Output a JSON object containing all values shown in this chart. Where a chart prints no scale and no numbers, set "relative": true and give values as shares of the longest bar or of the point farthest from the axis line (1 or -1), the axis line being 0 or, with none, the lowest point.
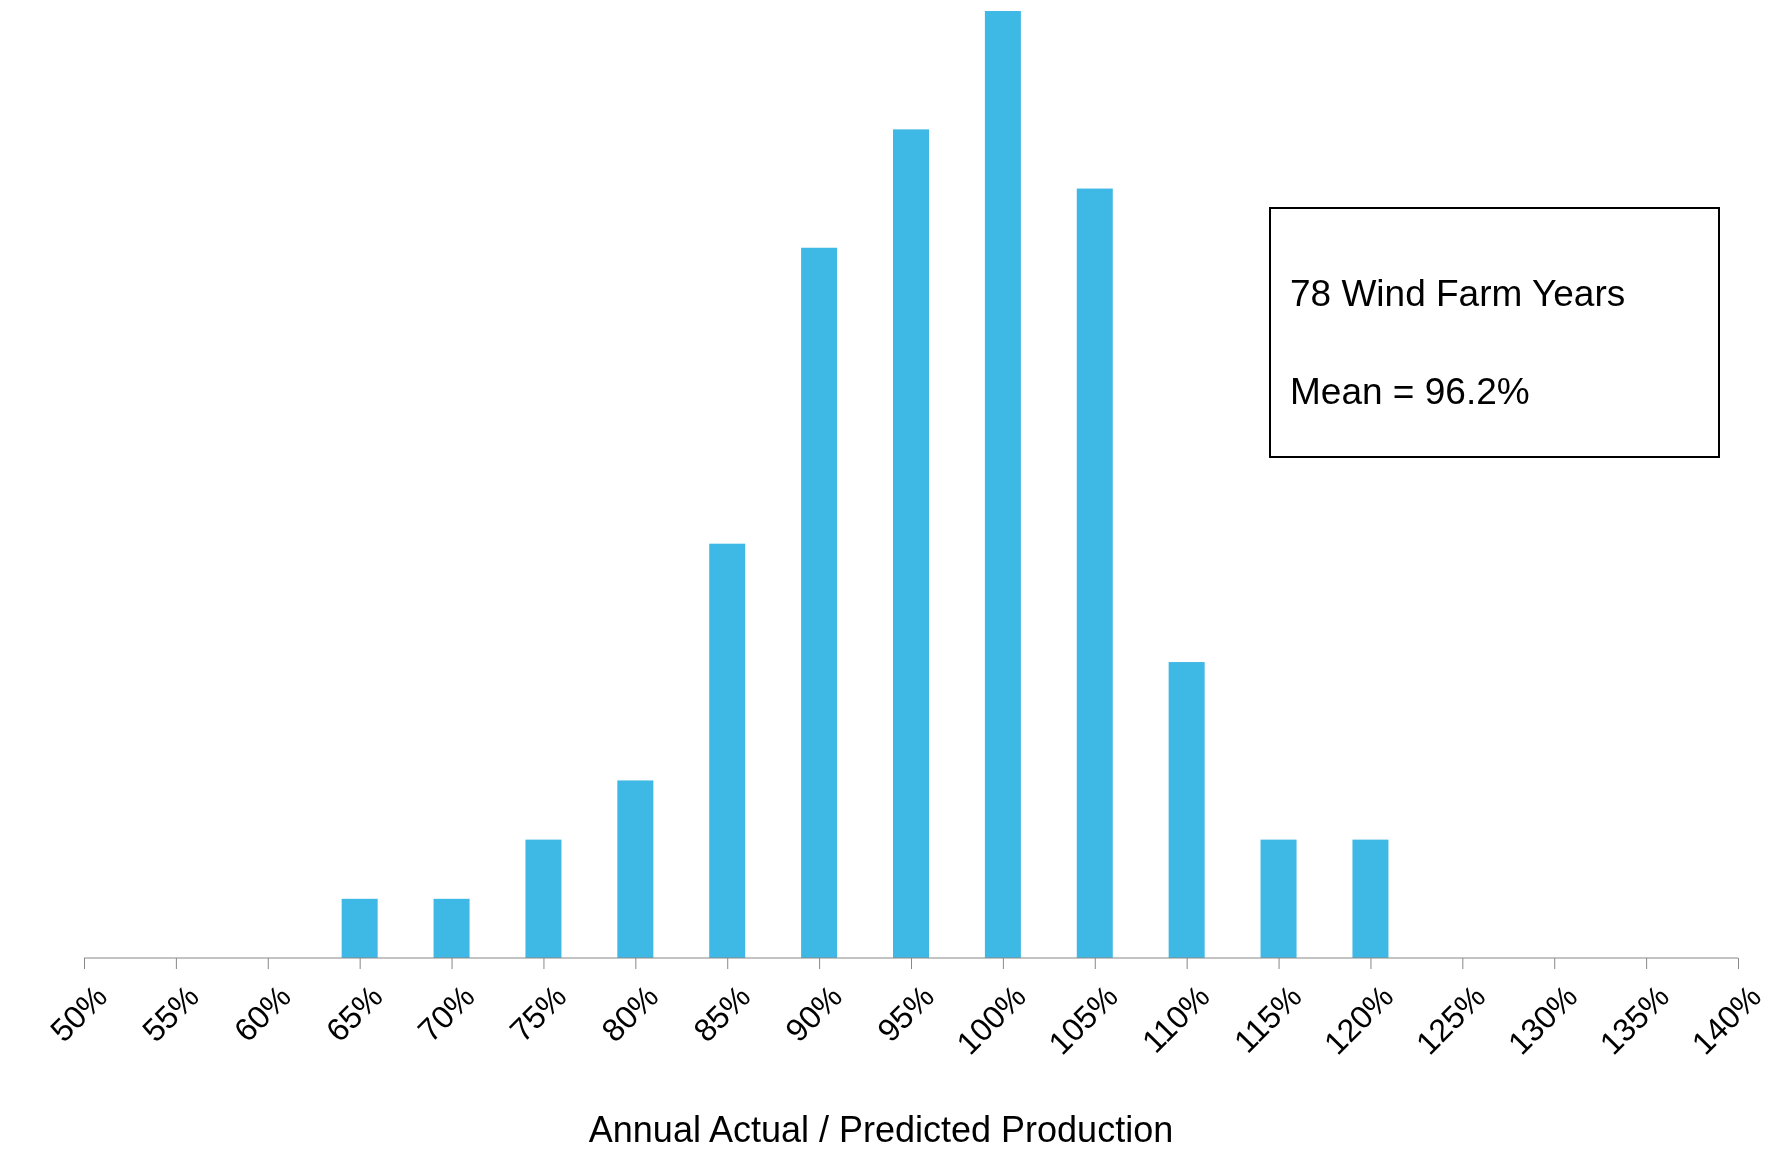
{
  "chart_data": {
    "type": "bar",
    "relative": true,
    "xlabel": "Annual Actual / Predicted Production",
    "categories": [
      "50%",
      "55%",
      "60%",
      "65%",
      "70%",
      "75%",
      "80%",
      "85%",
      "90%",
      "95%",
      "100%",
      "105%",
      "110%",
      "115%",
      "120%",
      "125%",
      "130%",
      "135%",
      "140%"
    ],
    "values": [
      0,
      0,
      0,
      0.0625,
      0.0625,
      0.125,
      0.1875,
      0.4375,
      0.75,
      0.875,
      1,
      0.8125,
      0.3125,
      0.125,
      0.125,
      0,
      0,
      0,
      0
    ],
    "color": "#3eb8e4",
    "annotations": [
      "78 Wind Farm Years",
      "Mean = 96.2%"
    ],
    "grid": false
  }
}
